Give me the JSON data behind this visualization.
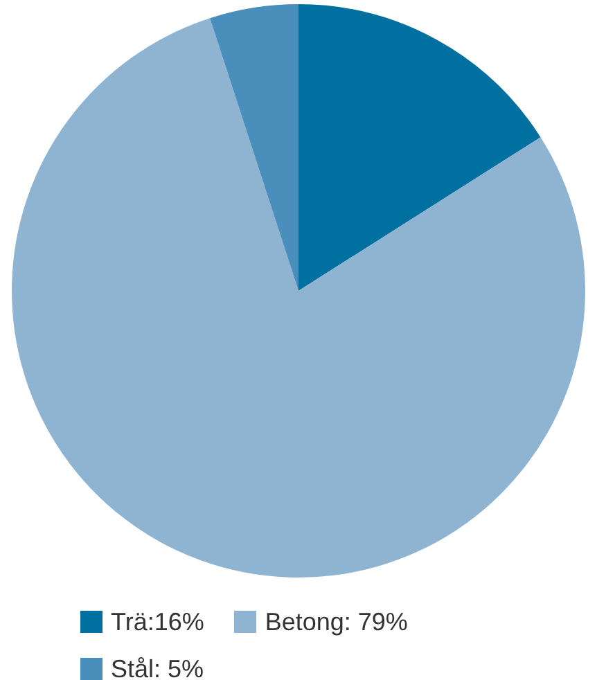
{
  "chart_data": {
    "type": "pie",
    "categories": [
      "Trä:16%",
      "Betong: 79%",
      "Stål: 5%"
    ],
    "values": [
      16,
      79,
      5
    ],
    "colors": [
      "#0070a0",
      "#8fb4d2",
      "#4a8fbb"
    ],
    "legend": "bottom"
  }
}
